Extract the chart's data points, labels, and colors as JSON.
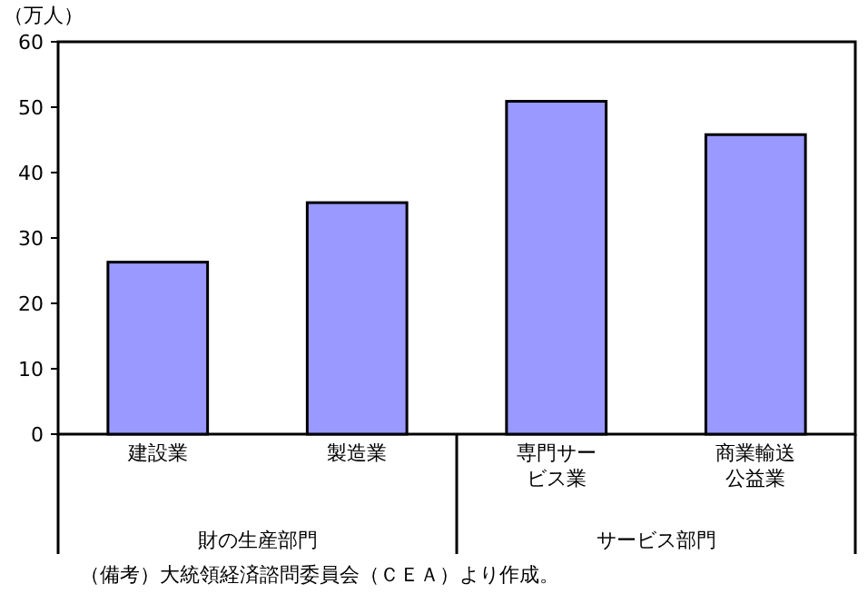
{
  "chart_data": {
    "type": "bar",
    "ylabel": "（万人）",
    "categories": [
      "建設業",
      "製造業",
      "専門サービス業",
      "商業輸送公益業"
    ],
    "values": [
      26.3,
      35.4,
      50.9,
      45.8
    ],
    "color": "#9999ff",
    "ylim": [
      0,
      60
    ],
    "yticks": [
      0,
      10,
      20,
      30,
      40,
      50,
      60
    ],
    "grid": false,
    "annotations": [
      "財の生産部門",
      "サービス部門",
      "（備考）大統領経済諮問委員会（ＣＥＡ）より作成。"
    ]
  }
}
